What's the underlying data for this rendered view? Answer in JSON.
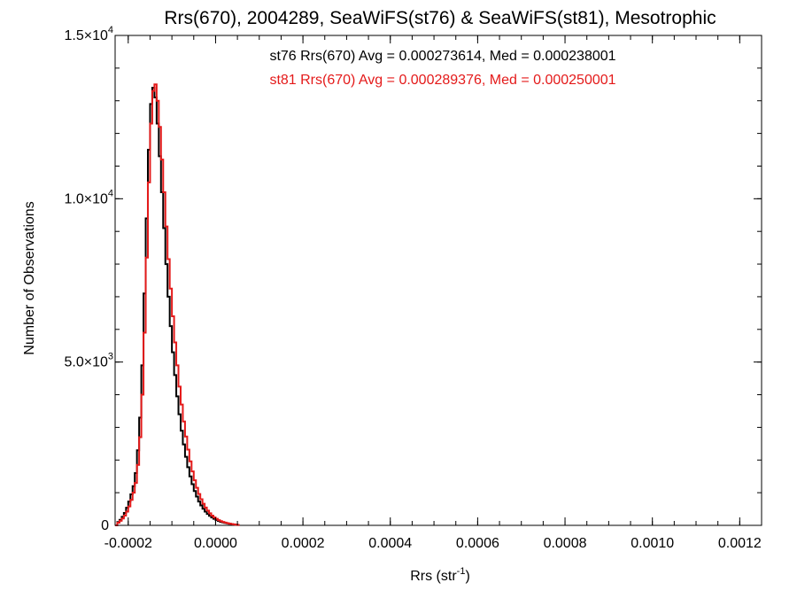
{
  "chart_data": {
    "type": "histogram",
    "title": "Rrs(670), 2004289, SeaWiFS(st76) & SeaWiFS(st81), Mesotrophic",
    "xlabel": "Rrs (str",
    "xlabel_sup": "-1",
    "xlabel_end": ")",
    "ylabel": "Number of Observations",
    "xlim": [
      -0.00023,
      0.00125
    ],
    "ylim": [
      0,
      15000
    ],
    "x_ticks": [
      -0.0002,
      0.0,
      0.0002,
      0.0004,
      0.0006,
      0.0008,
      0.001,
      0.0012
    ],
    "x_tick_labels": [
      "-0.0002",
      "0.0000",
      "0.0002",
      "0.0004",
      "0.0006",
      "0.0008",
      "0.0010",
      "0.0012"
    ],
    "y_ticks": [
      {
        "value": 0,
        "base": "0",
        "exp": ""
      },
      {
        "value": 5000,
        "base": "5.0×10",
        "exp": "3"
      },
      {
        "value": 10000,
        "base": "1.0×10",
        "exp": "4"
      },
      {
        "value": 15000,
        "base": "1.5×10",
        "exp": "4"
      }
    ],
    "bin_width": 5e-06,
    "series": [
      {
        "name": "st76",
        "color": "#000000",
        "annotation": "st76 Rrs(670) Avg = 0.000273614, Med = 0.000238001",
        "x_start": -0.00023,
        "counts": [
          0,
          100,
          170,
          260,
          380,
          540,
          730,
          950,
          1200,
          1600,
          2300,
          3300,
          4900,
          7100,
          9400,
          11500,
          12900,
          13400,
          13100,
          12300,
          11300,
          10200,
          9100,
          8000,
          7000,
          6100,
          5300,
          4600,
          3950,
          3400,
          2900,
          2480,
          2100,
          1780,
          1500,
          1260,
          1050,
          880,
          730,
          610,
          510,
          420,
          350,
          290,
          240,
          200,
          165,
          135,
          110,
          90,
          74,
          60,
          48,
          38,
          28,
          20,
          10
        ]
      },
      {
        "name": "st81",
        "color": "#e41a1a",
        "annotation": "st81 Rrs(670) Avg = 0.000289376, Med = 0.000250001",
        "x_start": -0.00023,
        "counts": [
          0,
          80,
          140,
          210,
          300,
          420,
          580,
          780,
          1000,
          1300,
          1850,
          2700,
          4000,
          5900,
          8200,
          10500,
          12300,
          13300,
          13500,
          13000,
          12200,
          11200,
          10200,
          9150,
          8150,
          7250,
          6400,
          5600,
          4900,
          4250,
          3700,
          3180,
          2720,
          2320,
          1960,
          1650,
          1380,
          1150,
          960,
          800,
          660,
          545,
          450,
          370,
          300,
          245,
          200,
          160,
          130,
          105,
          85,
          68,
          54,
          42,
          31,
          22,
          12
        ]
      }
    ]
  }
}
